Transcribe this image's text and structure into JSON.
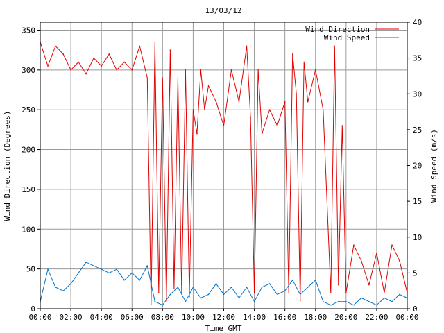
{
  "colors": {
    "direction": "#e00000",
    "speed": "#0072c8",
    "grid": "#9a9a9a",
    "axis": "#000000"
  },
  "chart_data": {
    "type": "line",
    "title": "13/03/12",
    "xlabel": "Time GMT",
    "ylabel_left": "Wind Direction (Degrees)",
    "ylabel_right": "Wind Speed (m/s)",
    "xlim_hours": [
      0,
      24
    ],
    "ylim_left": [
      0,
      360
    ],
    "ylim_right": [
      0,
      40
    ],
    "grid": true,
    "legend_position": "top-right",
    "x_ticks": [
      "00:00",
      "02:00",
      "04:00",
      "06:00",
      "08:00",
      "10:00",
      "12:00",
      "14:00",
      "16:00",
      "18:00",
      "20:00",
      "22:00",
      "00:00"
    ],
    "y_ticks_left": [
      "0",
      "50",
      "100",
      "150",
      "200",
      "250",
      "300",
      "350"
    ],
    "y_ticks_right": [
      "0",
      "5",
      "10",
      "15",
      "20",
      "25",
      "30",
      "35",
      "40"
    ],
    "series": [
      {
        "name": "Wind Direction",
        "axis": "left",
        "x": [
          "00:00",
          "00:30",
          "01:00",
          "01:30",
          "02:00",
          "02:30",
          "03:00",
          "03:30",
          "04:00",
          "04:30",
          "05:00",
          "05:30",
          "06:00",
          "06:30",
          "07:00",
          "07:15",
          "07:30",
          "07:45",
          "08:00",
          "08:15",
          "08:30",
          "08:45",
          "09:00",
          "09:15",
          "09:30",
          "09:45",
          "10:00",
          "10:15",
          "10:30",
          "10:45",
          "11:00",
          "11:30",
          "12:00",
          "12:30",
          "13:00",
          "13:30",
          "13:45",
          "14:00",
          "14:15",
          "14:30",
          "15:00",
          "15:30",
          "16:00",
          "16:15",
          "16:30",
          "16:45",
          "17:00",
          "17:15",
          "17:30",
          "18:00",
          "18:30",
          "19:00",
          "19:15",
          "19:30",
          "19:45",
          "20:00",
          "20:30",
          "21:00",
          "21:30",
          "22:00",
          "22:30",
          "23:00",
          "23:30",
          "24:00"
        ],
        "values": [
          335,
          305,
          330,
          320,
          300,
          310,
          295,
          315,
          305,
          320,
          300,
          310,
          300,
          330,
          290,
          5,
          335,
          20,
          290,
          10,
          325,
          25,
          290,
          20,
          300,
          15,
          250,
          220,
          300,
          250,
          280,
          260,
          230,
          300,
          260,
          330,
          240,
          20,
          300,
          220,
          250,
          230,
          260,
          20,
          320,
          270,
          10,
          310,
          260,
          300,
          250,
          20,
          330,
          30,
          230,
          20,
          80,
          60,
          30,
          70,
          20,
          80,
          60,
          20
        ]
      },
      {
        "name": "Wind Speed",
        "axis": "right",
        "x": [
          "00:00",
          "00:30",
          "01:00",
          "01:30",
          "02:00",
          "02:30",
          "03:00",
          "03:30",
          "04:00",
          "04:30",
          "05:00",
          "05:30",
          "06:00",
          "06:30",
          "07:00",
          "07:30",
          "08:00",
          "08:30",
          "09:00",
          "09:30",
          "10:00",
          "10:30",
          "11:00",
          "11:30",
          "12:00",
          "12:30",
          "13:00",
          "13:30",
          "14:00",
          "14:30",
          "15:00",
          "15:30",
          "16:00",
          "16:30",
          "17:00",
          "17:30",
          "18:00",
          "18:30",
          "19:00",
          "19:30",
          "20:00",
          "20:30",
          "21:00",
          "21:30",
          "22:00",
          "22:30",
          "23:00",
          "23:30",
          "24:00"
        ],
        "values": [
          1,
          5.5,
          3,
          2.5,
          3.5,
          5,
          6.5,
          6,
          5.5,
          5,
          5.5,
          4,
          5,
          4,
          6,
          1,
          0.5,
          2,
          3,
          1,
          3,
          1.5,
          2,
          3.5,
          2,
          3,
          1.5,
          3,
          1,
          3,
          3.5,
          2,
          2.5,
          4,
          2,
          3,
          4,
          1,
          0.5,
          1,
          1,
          0.5,
          1.5,
          1,
          0.5,
          1.5,
          1,
          2,
          1.5
        ]
      }
    ]
  }
}
